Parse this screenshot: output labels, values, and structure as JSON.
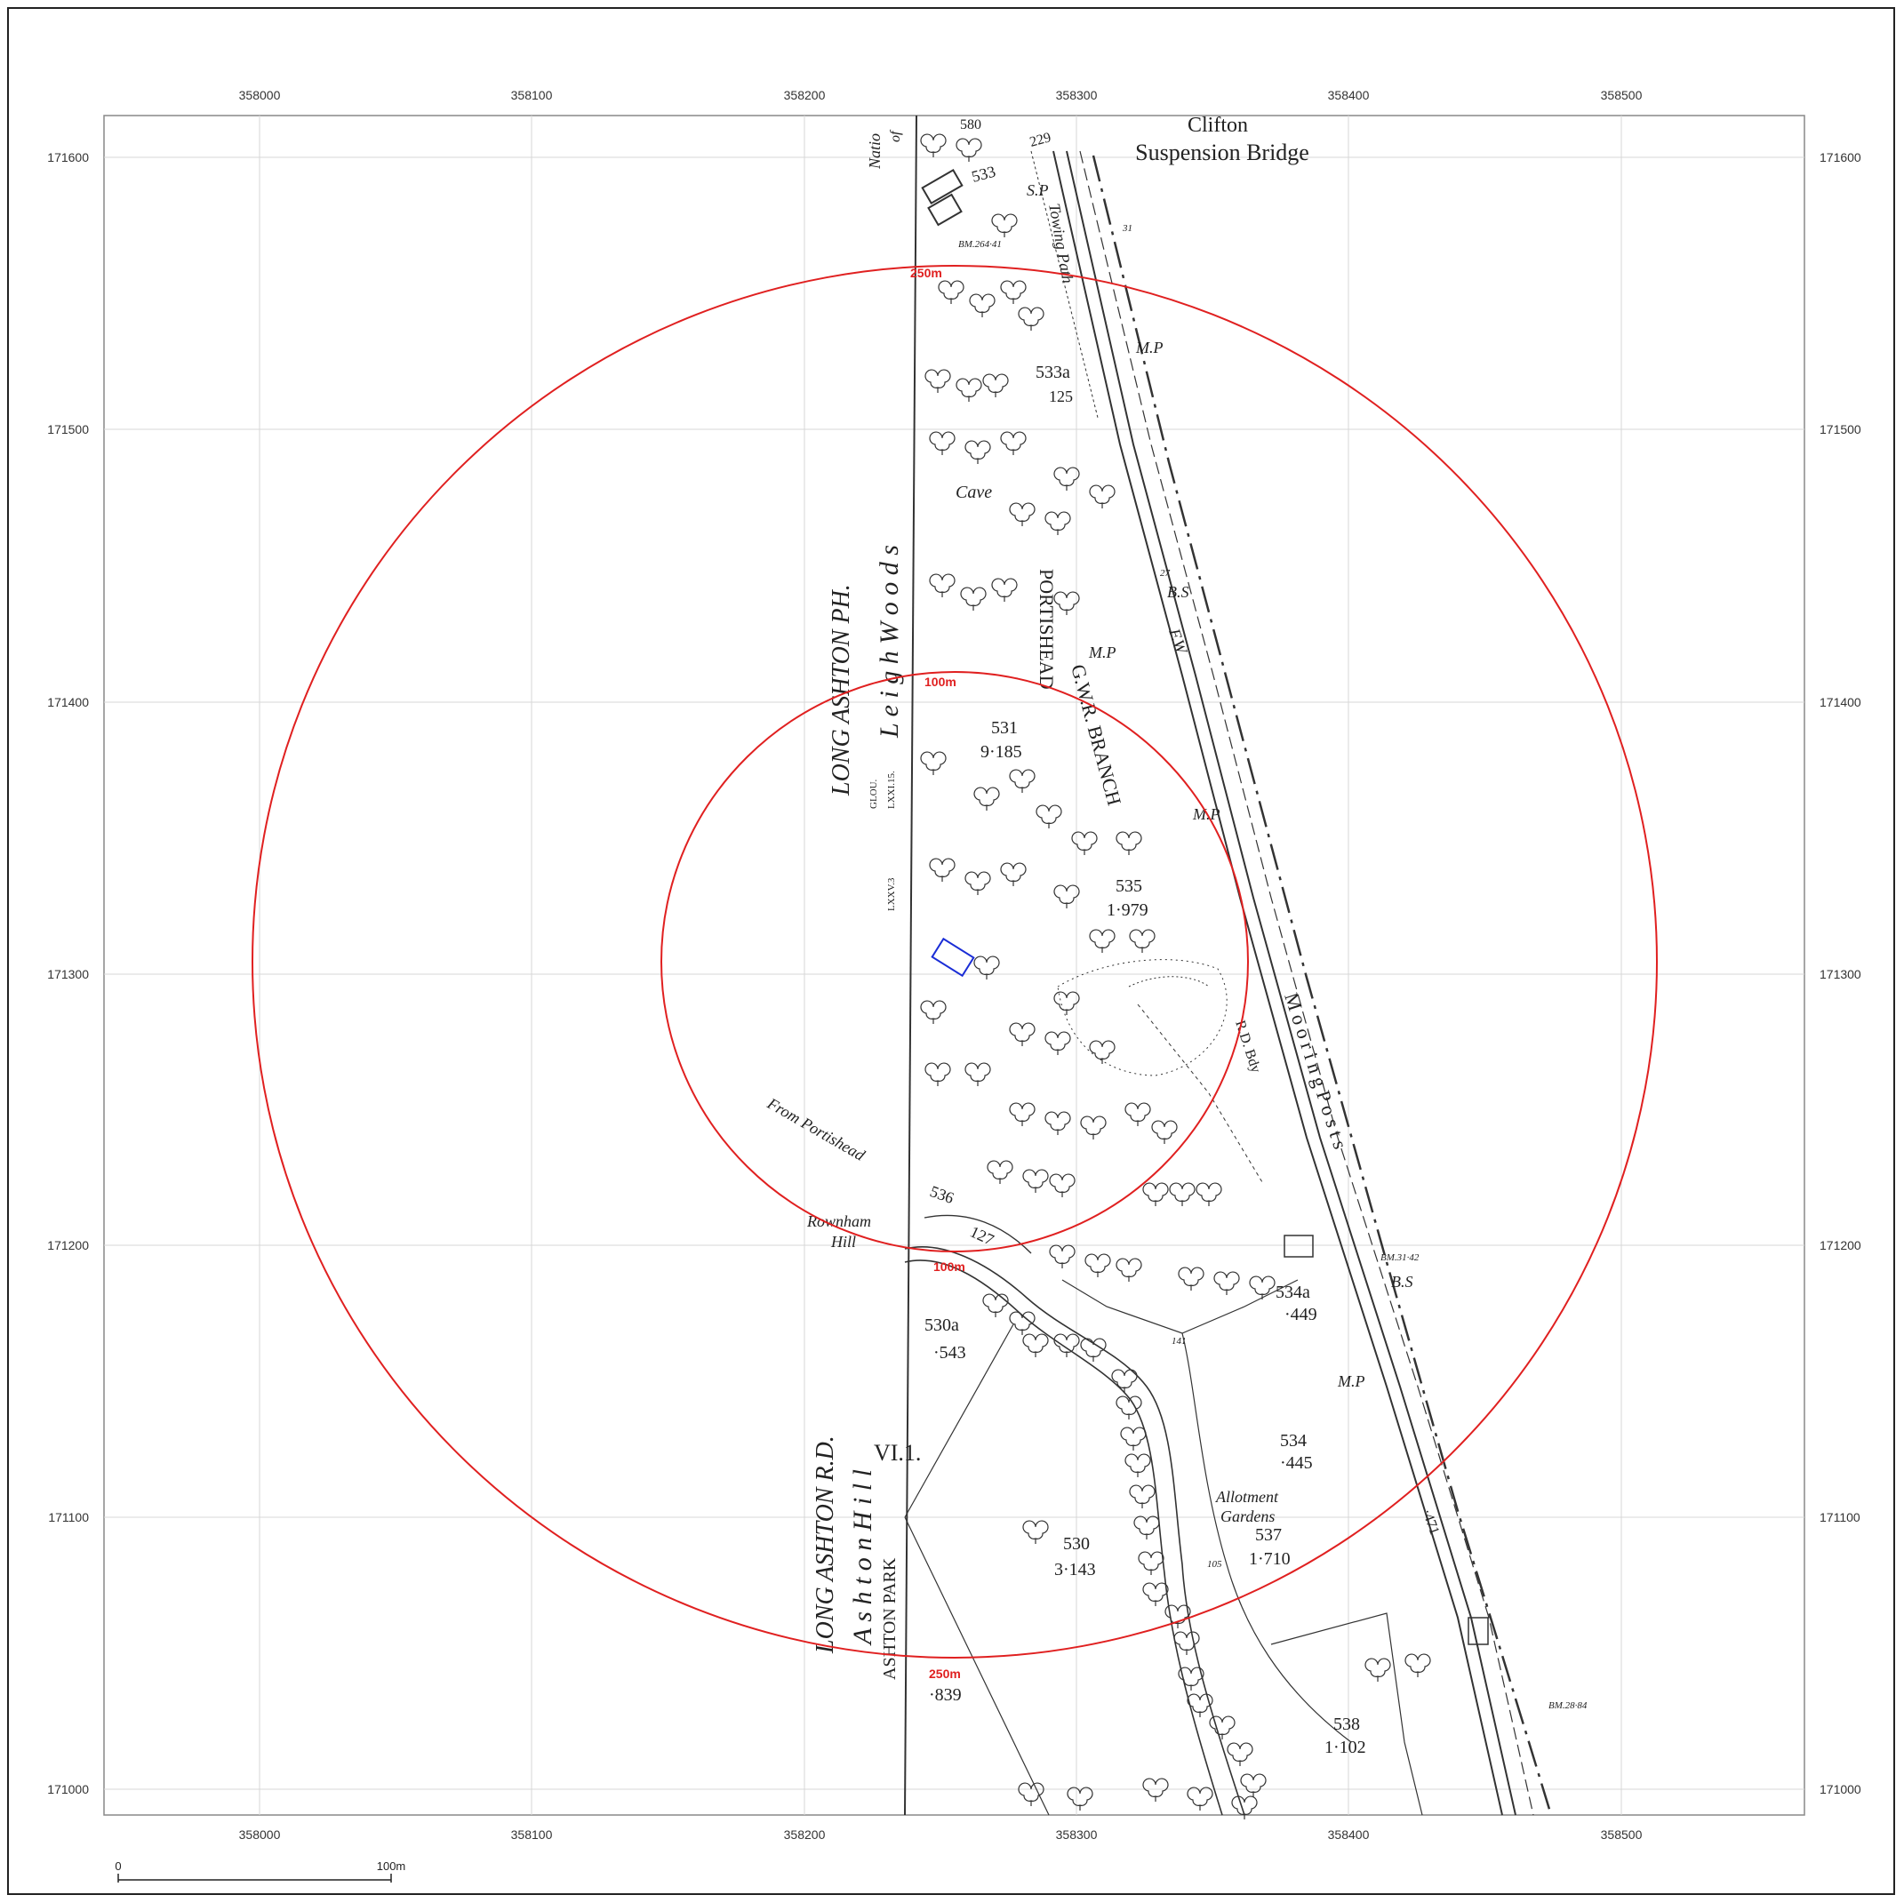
{
  "axes": {
    "x_ticks": [
      "358000",
      "358100",
      "358200",
      "358300",
      "358400",
      "358500"
    ],
    "y_ticks": [
      "171600",
      "171500",
      "171400",
      "171300",
      "171200",
      "171100",
      "171000"
    ]
  },
  "rings": {
    "inner_label": "100m",
    "outer_label": "250m",
    "color": "#e02020"
  },
  "site_marker": {
    "color": "#1a2dd6"
  },
  "scale_bar": {
    "start_label": "0",
    "end_label": "100m"
  },
  "map_labels": {
    "clifton": "Clifton",
    "suspension_bridge": "Suspension Bridge",
    "leigh_woods": "L e i g h   W o o d s",
    "long_ashton_ph": "LONG ASHTON PH.",
    "long_ashton_rd": "LONG ASHTON R.D.",
    "ashton_hill": "A s h t o n   H i l l",
    "ashton_park": "ASHTON PARK",
    "portishead": "PORTISHEAD",
    "gwr_branch": "G.W.R. BRANCH",
    "towing_path": "Towing Path",
    "cave": "Cave",
    "from_portishead": "From Portishead",
    "rownham": "Rownham",
    "hill": "Hill",
    "moorings": "M o o r i n g   P o s t s",
    "rd_bdy": "R.D. Bdy",
    "fw": "F.W",
    "allotment": "Allotment",
    "gardens": "Gardens",
    "glou": "GLOU.",
    "lxxi15": "LXXI.15.",
    "lxxv3": "LXXV.3",
    "vi1": "VI.1.",
    "nat": "Natio",
    "of": "of",
    "mp1": "M.P",
    "mp2": "M.P",
    "mp3": "M.P",
    "mp4": "M.P",
    "bs1": "B.S",
    "bs2": "B.S",
    "sp": "S.P",
    "bm1": "BM.264·41",
    "bm2": "BM.31·42",
    "bm3": "BM.28·84",
    "p533": "533",
    "p229": "229",
    "p580": "580",
    "p533a": "533a",
    "p125": "125",
    "p531": "531",
    "p9185": "9·185",
    "p535": "535",
    "p1979": "1·979",
    "p536": "536",
    "p127": "127",
    "p530a": "530a",
    "p543": "·543",
    "p534a": "534a",
    "p449": "·449",
    "p534": "534",
    "p445": "·445",
    "p537": "537",
    "p1710": "1·710",
    "p530": "530",
    "p3143": "3·143",
    "p538": "538",
    "p1102": "1·102",
    "p839": "·839",
    "p471": "·471",
    "p141": "141",
    "p105": "105",
    "p27": "27",
    "p31": "31"
  }
}
